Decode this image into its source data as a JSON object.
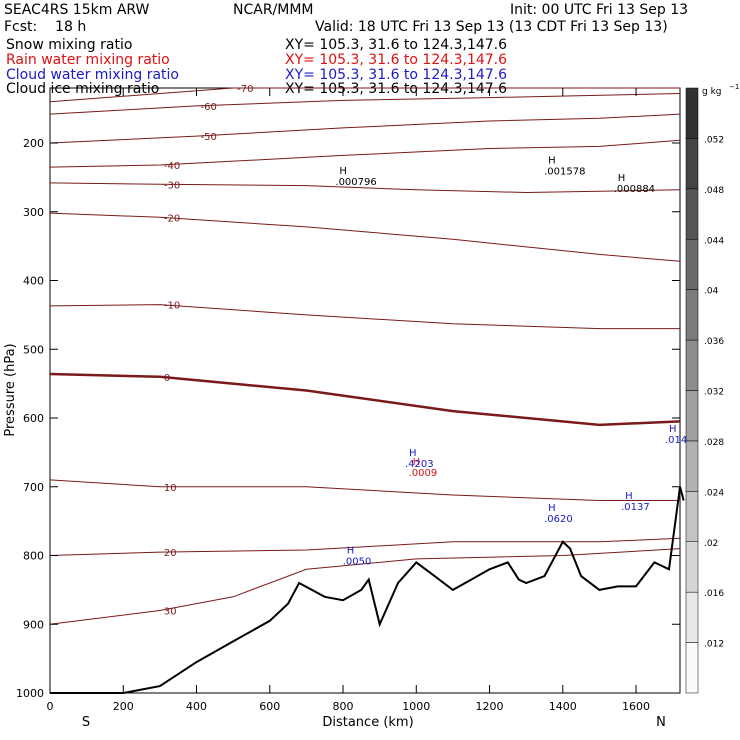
{
  "header": {
    "model": "SEAC4RS 15km ARW",
    "org": "NCAR/MMM",
    "init": "Init: 00 UTC Fri 13 Sep 13",
    "fcst": "Fcst:    18 h",
    "valid": "Valid: 18 UTC Fri 13 Sep 13 (13 CDT Fri 13 Sep 13)"
  },
  "legend": [
    {
      "name": "Snow mixing ratio",
      "xy": "XY= 105.3, 31.6 to 124.3,147.6",
      "color": "#000000"
    },
    {
      "name": "Rain water mixing ratio",
      "xy": "XY= 105.3, 31.6 to 124.3,147.6",
      "color": "#dd1111"
    },
    {
      "name": "Cloud water mixing ratio",
      "xy": "XY= 105.3, 31.6 to 124.3,147.6",
      "color": "#1a1acc"
    },
    {
      "name": "Cloud ice mixing ratio",
      "xy": "XY= 105.3, 31.6 to 124.3,147.6",
      "color": "#000000"
    }
  ],
  "chart_data": {
    "type": "cross-section contour",
    "xlabel": "Distance (km)",
    "ylabel": "Pressure (hPa)",
    "xlim": [
      0,
      1720
    ],
    "ylim": [
      1000,
      100
    ],
    "xticks": [
      0,
      200,
      400,
      600,
      800,
      1000,
      1200,
      1400,
      1600
    ],
    "yticks": [
      200,
      300,
      400,
      500,
      600,
      700,
      800,
      900,
      1000
    ],
    "x_end_labels": {
      "left": "S",
      "right": "N"
    },
    "temperature_contours_C": [
      {
        "level": -70,
        "points": [
          [
            0,
            140
          ],
          [
            500,
            120
          ],
          [
            1000,
            118
          ],
          [
            1400,
            120
          ],
          [
            1720,
            116
          ]
        ]
      },
      {
        "level": -60,
        "points": [
          [
            0,
            158
          ],
          [
            400,
            146
          ],
          [
            800,
            138
          ],
          [
            1200,
            134
          ],
          [
            1720,
            128
          ]
        ]
      },
      {
        "level": -50,
        "points": [
          [
            0,
            200
          ],
          [
            400,
            190
          ],
          [
            800,
            178
          ],
          [
            1200,
            168
          ],
          [
            1500,
            164
          ],
          [
            1720,
            158
          ]
        ]
      },
      {
        "level": -40,
        "points": [
          [
            0,
            235
          ],
          [
            300,
            232
          ],
          [
            800,
            218
          ],
          [
            1200,
            208
          ],
          [
            1500,
            205
          ],
          [
            1720,
            196
          ]
        ]
      },
      {
        "level": -30,
        "points": [
          [
            0,
            258
          ],
          [
            300,
            260
          ],
          [
            700,
            262
          ],
          [
            1000,
            268
          ],
          [
            1300,
            272
          ],
          [
            1720,
            268
          ]
        ]
      },
      {
        "level": -20,
        "points": [
          [
            0,
            302
          ],
          [
            300,
            308
          ],
          [
            700,
            322
          ],
          [
            1100,
            340
          ],
          [
            1500,
            362
          ],
          [
            1720,
            372
          ]
        ]
      },
      {
        "level": -10,
        "points": [
          [
            0,
            437
          ],
          [
            300,
            435
          ],
          [
            700,
            450
          ],
          [
            1100,
            463
          ],
          [
            1500,
            470
          ],
          [
            1720,
            470
          ]
        ]
      },
      {
        "level": 0,
        "points": [
          [
            0,
            536
          ],
          [
            300,
            540
          ],
          [
            700,
            560
          ],
          [
            1100,
            590
          ],
          [
            1500,
            610
          ],
          [
            1720,
            605
          ]
        ]
      },
      {
        "level": 10,
        "points": [
          [
            0,
            690
          ],
          [
            300,
            700
          ],
          [
            700,
            700
          ],
          [
            1100,
            712
          ],
          [
            1500,
            720
          ],
          [
            1720,
            720
          ]
        ]
      },
      {
        "level": 20,
        "points": [
          [
            0,
            800
          ],
          [
            300,
            795
          ],
          [
            700,
            792
          ],
          [
            1100,
            780
          ],
          [
            1500,
            780
          ],
          [
            1720,
            775
          ]
        ]
      },
      {
        "level": 30,
        "points": [
          [
            0,
            900
          ],
          [
            300,
            880
          ],
          [
            500,
            860
          ],
          [
            700,
            820
          ],
          [
            1000,
            805
          ],
          [
            1400,
            800
          ],
          [
            1720,
            790
          ]
        ]
      }
    ],
    "terrain_pressure_hPa": [
      [
        0,
        1000
      ],
      [
        200,
        1000
      ],
      [
        300,
        990
      ],
      [
        400,
        955
      ],
      [
        500,
        925
      ],
      [
        600,
        895
      ],
      [
        650,
        870
      ],
      [
        680,
        840
      ],
      [
        750,
        860
      ],
      [
        800,
        865
      ],
      [
        850,
        850
      ],
      [
        870,
        835
      ],
      [
        900,
        900
      ],
      [
        950,
        840
      ],
      [
        1000,
        810
      ],
      [
        1050,
        830
      ],
      [
        1100,
        850
      ],
      [
        1150,
        835
      ],
      [
        1200,
        820
      ],
      [
        1250,
        810
      ],
      [
        1280,
        835
      ],
      [
        1300,
        840
      ],
      [
        1350,
        830
      ],
      [
        1400,
        780
      ],
      [
        1420,
        790
      ],
      [
        1450,
        830
      ],
      [
        1500,
        850
      ],
      [
        1550,
        845
      ],
      [
        1600,
        845
      ],
      [
        1650,
        810
      ],
      [
        1690,
        820
      ],
      [
        1720,
        700
      ],
      [
        1730,
        720
      ]
    ],
    "maxima": [
      {
        "field": "Cloud ice mixing ratio",
        "label": "H",
        "value": ".000796",
        "x": 790,
        "p": 245
      },
      {
        "field": "Cloud ice mixing ratio",
        "label": "H",
        "value": ".001578",
        "x": 1360,
        "p": 230
      },
      {
        "field": "Cloud ice mixing ratio",
        "label": "H",
        "value": ".000884",
        "x": 1550,
        "p": 255
      },
      {
        "field": "Rain water mixing ratio",
        "label": "H",
        "value": ".0009",
        "x": 990,
        "p": 668
      },
      {
        "field": "Cloud water mixing ratio",
        "label": "H",
        "value": ".4203",
        "x": 980,
        "p": 655
      },
      {
        "field": "Cloud water mixing ratio",
        "label": "H",
        "value": ".0620",
        "x": 1360,
        "p": 735
      },
      {
        "field": "Cloud water mixing ratio",
        "label": "H",
        "value": ".0137",
        "x": 1570,
        "p": 718
      },
      {
        "field": "Cloud water mixing ratio",
        "label": "H",
        "value": ".0050",
        "x": 810,
        "p": 797
      },
      {
        "field": "Cloud water mixing ratio",
        "label": "H",
        "value": ".0141",
        "x": 1690,
        "p": 620
      }
    ],
    "colorbar": {
      "units": "g kg",
      "ticks": [
        0.012,
        0.016,
        0.02,
        0.024,
        0.028,
        0.032,
        0.036,
        0.04,
        0.044,
        0.048,
        0.052
      ],
      "tick_labels": [
        ".012",
        ".016",
        ".02",
        ".024",
        ".028",
        ".032",
        ".036",
        ".04",
        ".044",
        ".048",
        ".052"
      ],
      "range": [
        0.008,
        0.056
      ]
    }
  }
}
